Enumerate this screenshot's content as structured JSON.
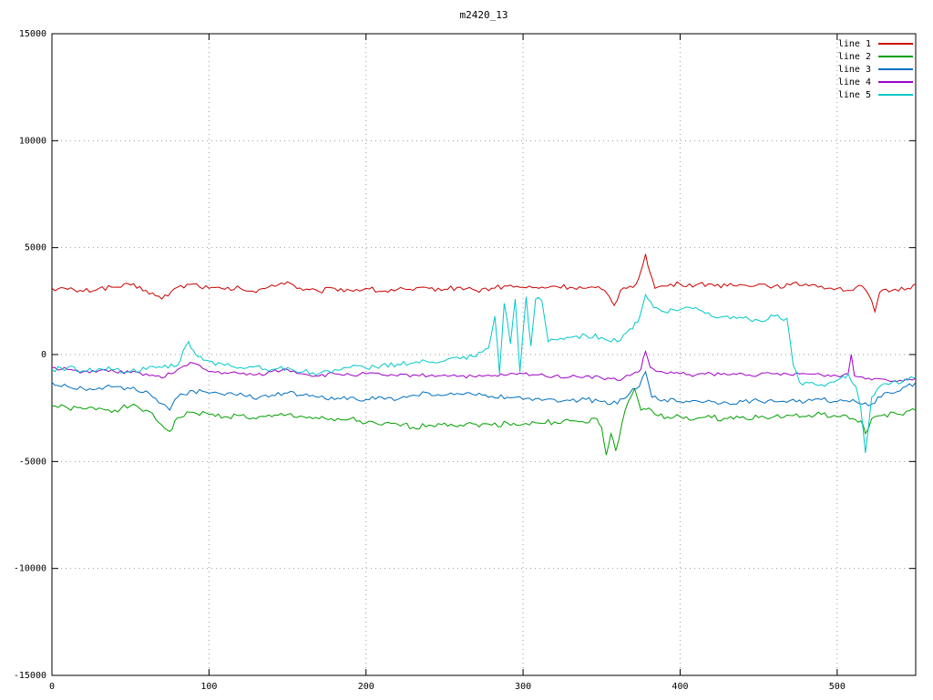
{
  "chart_data": {
    "type": "line",
    "title": "m2420_13",
    "xlabel": "",
    "ylabel": "",
    "xlim": [
      0,
      550
    ],
    "ylim": [
      -15000,
      15000
    ],
    "xticks": [
      0,
      100,
      200,
      300,
      400,
      500
    ],
    "yticks": [
      -15000,
      -10000,
      -5000,
      0,
      5000,
      10000,
      15000
    ],
    "grid": true,
    "legend_position": "top-right",
    "grid_color": "#9a9a9a",
    "border_color": "#000000",
    "series": [
      {
        "name": "line 1",
        "color": "#cc0000",
        "noise": 120,
        "x": [
          0,
          10,
          20,
          30,
          40,
          50,
          60,
          70,
          80,
          90,
          100,
          110,
          120,
          130,
          140,
          150,
          160,
          170,
          180,
          190,
          200,
          210,
          220,
          230,
          240,
          250,
          260,
          270,
          280,
          290,
          300,
          310,
          320,
          330,
          340,
          350,
          355,
          358,
          362,
          368,
          372,
          375,
          378,
          381,
          384,
          390,
          400,
          410,
          420,
          430,
          440,
          450,
          460,
          470,
          480,
          490,
          500,
          510,
          516,
          520,
          524,
          527,
          535,
          545,
          550
        ],
        "y": [
          3100,
          3050,
          2950,
          3100,
          3150,
          3250,
          3000,
          2600,
          3150,
          3300,
          3100,
          3050,
          3100,
          2900,
          3250,
          3400,
          3000,
          2950,
          3100,
          3000,
          3100,
          2950,
          3050,
          3000,
          3100,
          3050,
          3150,
          3000,
          3100,
          3200,
          3150,
          3100,
          3200,
          3150,
          3100,
          3050,
          2700,
          2300,
          3000,
          3200,
          3300,
          3900,
          4700,
          3800,
          3100,
          3200,
          3300,
          3250,
          3300,
          3200,
          3250,
          3300,
          3200,
          3250,
          3300,
          3200,
          3100,
          3000,
          3200,
          2800,
          2000,
          2900,
          3000,
          3100,
          3300
        ]
      },
      {
        "name": "line 2",
        "color": "#00a000",
        "noise": 130,
        "x": [
          0,
          10,
          20,
          30,
          40,
          50,
          60,
          70,
          75,
          80,
          90,
          100,
          110,
          120,
          130,
          140,
          150,
          160,
          170,
          180,
          190,
          200,
          210,
          220,
          230,
          240,
          250,
          260,
          270,
          280,
          290,
          300,
          310,
          320,
          330,
          340,
          347,
          350,
          353,
          356,
          359,
          363,
          367,
          371,
          375,
          380,
          390,
          400,
          410,
          420,
          430,
          440,
          450,
          460,
          470,
          480,
          490,
          500,
          510,
          515,
          518,
          522,
          530,
          540,
          550
        ],
        "y": [
          -2400,
          -2500,
          -2550,
          -2500,
          -2600,
          -2400,
          -2600,
          -3300,
          -3600,
          -2950,
          -2700,
          -2800,
          -2900,
          -2850,
          -3000,
          -2900,
          -2800,
          -2900,
          -3000,
          -3100,
          -3000,
          -3200,
          -3300,
          -3250,
          -3400,
          -3300,
          -3200,
          -3300,
          -3250,
          -3300,
          -3200,
          -3250,
          -3200,
          -3150,
          -3100,
          -3200,
          -3000,
          -3400,
          -4700,
          -3700,
          -4500,
          -3200,
          -2200,
          -1600,
          -2600,
          -2500,
          -3000,
          -2900,
          -3000,
          -2950,
          -3000,
          -2900,
          -2950,
          -2900,
          -2850,
          -2900,
          -2800,
          -2900,
          -3000,
          -3100,
          -3700,
          -3000,
          -2800,
          -2800,
          -2600
        ]
      },
      {
        "name": "line 3",
        "color": "#0070c0",
        "noise": 110,
        "x": [
          0,
          10,
          20,
          30,
          40,
          50,
          60,
          70,
          75,
          80,
          90,
          100,
          110,
          120,
          130,
          140,
          150,
          160,
          170,
          180,
          190,
          200,
          210,
          220,
          230,
          240,
          250,
          260,
          270,
          280,
          290,
          300,
          310,
          320,
          330,
          340,
          350,
          360,
          368,
          374,
          378,
          382,
          390,
          400,
          410,
          420,
          430,
          440,
          450,
          460,
          470,
          480,
          490,
          500,
          510,
          520,
          530,
          540,
          550
        ],
        "y": [
          -1300,
          -1500,
          -1600,
          -1550,
          -1500,
          -1600,
          -1700,
          -2300,
          -2600,
          -2000,
          -1700,
          -1800,
          -1900,
          -1800,
          -2100,
          -1900,
          -1800,
          -1900,
          -2000,
          -2100,
          -2000,
          -2100,
          -2000,
          -2100,
          -1900,
          -1800,
          -1900,
          -1850,
          -1900,
          -1950,
          -2000,
          -2100,
          -2050,
          -2100,
          -2150,
          -2100,
          -2200,
          -2300,
          -1800,
          -1500,
          -800,
          -2000,
          -2100,
          -2200,
          -2150,
          -2200,
          -2250,
          -2200,
          -2150,
          -2200,
          -2150,
          -2200,
          -2100,
          -2200,
          -2100,
          -2400,
          -1800,
          -1700,
          -1300
        ]
      },
      {
        "name": "line 4",
        "color": "#a000c8",
        "noise": 90,
        "x": [
          0,
          10,
          20,
          30,
          40,
          50,
          60,
          70,
          80,
          90,
          100,
          110,
          120,
          130,
          140,
          150,
          160,
          170,
          180,
          190,
          200,
          210,
          220,
          230,
          240,
          250,
          260,
          270,
          280,
          290,
          300,
          310,
          320,
          330,
          340,
          350,
          360,
          370,
          375,
          378,
          381,
          386,
          390,
          400,
          410,
          420,
          430,
          440,
          450,
          460,
          470,
          480,
          490,
          500,
          507,
          509,
          511,
          520,
          530,
          540,
          550
        ],
        "y": [
          -600,
          -700,
          -800,
          -750,
          -800,
          -850,
          -900,
          -1100,
          -700,
          -400,
          -800,
          -850,
          -900,
          -950,
          -800,
          -700,
          -900,
          -1000,
          -900,
          -950,
          -900,
          -950,
          -1000,
          -950,
          -1000,
          -950,
          -1000,
          -1050,
          -1000,
          -950,
          -900,
          -950,
          -1000,
          -1050,
          -1000,
          -1100,
          -1200,
          -900,
          -700,
          150,
          -600,
          -800,
          -850,
          -900,
          -950,
          -900,
          -950,
          -900,
          -950,
          -900,
          -950,
          -900,
          -950,
          -1000,
          -900,
          0,
          -1000,
          -1100,
          -1150,
          -1200,
          -1100
        ]
      },
      {
        "name": "line 5",
        "color": "#00c8c8",
        "noise": 130,
        "x": [
          0,
          10,
          20,
          30,
          40,
          50,
          60,
          70,
          80,
          87,
          90,
          93,
          100,
          110,
          120,
          130,
          140,
          150,
          160,
          170,
          180,
          190,
          200,
          210,
          220,
          230,
          240,
          250,
          260,
          270,
          278,
          282,
          285,
          288,
          292,
          295,
          298,
          302,
          305,
          308,
          312,
          316,
          320,
          330,
          340,
          350,
          360,
          368,
          373,
          378,
          383,
          390,
          400,
          410,
          420,
          430,
          440,
          450,
          460,
          468,
          472,
          476,
          480,
          490,
          500,
          507,
          512,
          515,
          518,
          522,
          527,
          535,
          545,
          550
        ],
        "y": [
          -700,
          -600,
          -750,
          -650,
          -700,
          -800,
          -700,
          -600,
          -500,
          600,
          200,
          -100,
          -300,
          -500,
          -600,
          -550,
          -700,
          -600,
          -800,
          -900,
          -700,
          -600,
          -650,
          -500,
          -450,
          -400,
          -350,
          -300,
          -200,
          -100,
          300,
          1800,
          -900,
          2400,
          500,
          2600,
          -800,
          2700,
          400,
          2600,
          2500,
          600,
          700,
          800,
          900,
          800,
          600,
          1200,
          1500,
          2800,
          2200,
          2000,
          2100,
          2200,
          1800,
          1800,
          1700,
          1600,
          1800,
          1700,
          -500,
          -1300,
          -1300,
          -1400,
          -1200,
          -900,
          -1500,
          -2500,
          -4600,
          -2000,
          -1500,
          -1300,
          -1200,
          -1100
        ]
      }
    ]
  }
}
